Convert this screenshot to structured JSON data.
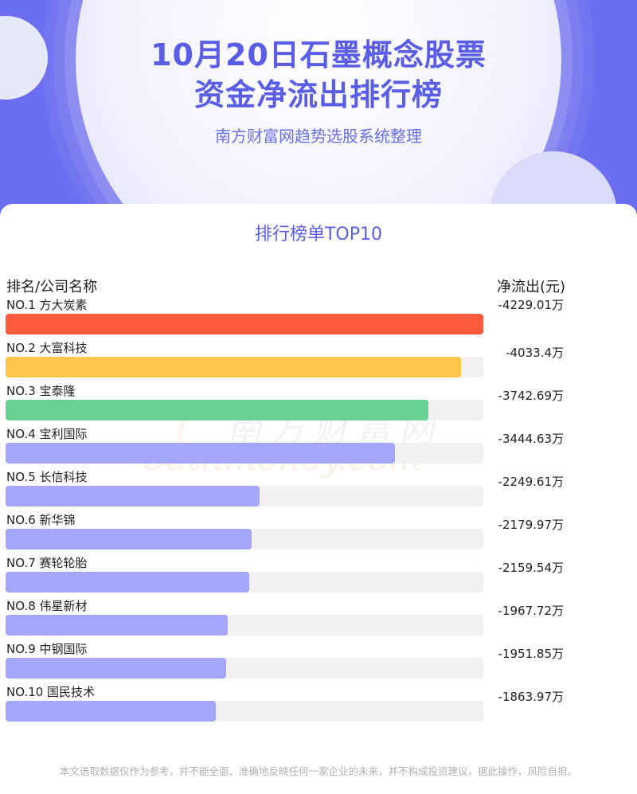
{
  "header": {
    "title_line1": "10月20日石墨概念股票",
    "title_line2": "资金净流出排行榜",
    "subtitle": "南方财富网趋势选股系统整理"
  },
  "section_title": "排行榜单TOP10",
  "columns": {
    "left": "排名/公司名称",
    "right": "净流出(元)"
  },
  "watermark": {
    "cn": "南方财富网",
    "en": "outhmoney.com"
  },
  "footer": "本文选取数据仅作为参考，并不能全面、准确地反映任何一家企业的未来，并不构成投资建议，据此操作，风险自担。",
  "colors": {
    "accent": "#5a5ee6",
    "bar1": "#ff5a3c",
    "bar2": "#ffc548",
    "bar3": "#66d191",
    "bar_rest": "#a3a6fb",
    "track": "#f3f0f1"
  },
  "chart_data": {
    "type": "bar",
    "orientation": "horizontal",
    "categories": [
      "NO.1 方大炭素",
      "NO.2 大富科技",
      "NO.3 宝泰隆",
      "NO.4 宝利国际",
      "NO.5 长信科技",
      "NO.6 新华锦",
      "NO.7 赛轮轮胎",
      "NO.8 伟星新材",
      "NO.9 中钢国际",
      "NO.10 国民技术"
    ],
    "values": [
      4229.01,
      4033.4,
      3742.69,
      3444.63,
      2249.61,
      2179.97,
      2159.54,
      1967.72,
      1951.85,
      1863.97
    ],
    "value_labels": [
      "-4229.01万",
      "-4033.4万",
      "-3742.69万",
      "-3444.63万",
      "-2249.61万",
      "-2179.97万",
      "-2159.54万",
      "-1967.72万",
      "-1951.85万",
      "-1863.97万"
    ],
    "ylabel": "净流出(元)",
    "xmax": 4229.01
  }
}
